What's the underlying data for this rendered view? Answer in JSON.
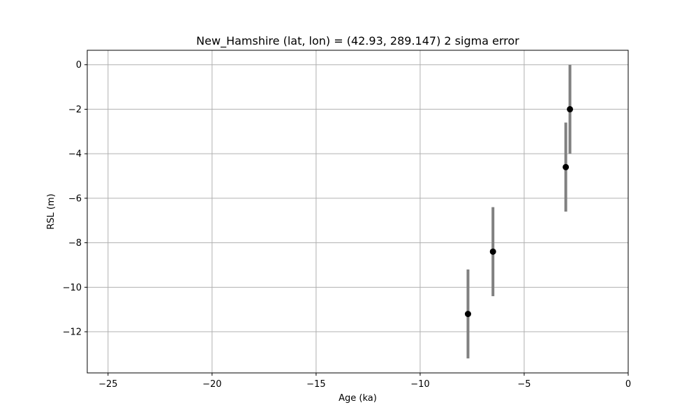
{
  "chart_data": {
    "type": "scatter",
    "title": "New_Hamshire (lat, lon) = (42.93, 289.147)  2 sigma error",
    "xlabel": "Age (ka)",
    "ylabel": "RSL (m)",
    "xlim": [
      -26,
      0
    ],
    "ylim": [
      -13.85,
      0.65
    ],
    "x_ticks": [
      -25,
      -20,
      -15,
      -10,
      -5,
      0
    ],
    "y_ticks": [
      0,
      -2,
      -4,
      -6,
      -8,
      -10,
      -12
    ],
    "x_tick_labels": [
      "−25",
      "−20",
      "−15",
      "−10",
      "−5",
      "0"
    ],
    "y_tick_labels": [
      "0",
      "−2",
      "−4",
      "−6",
      "−8",
      "−10",
      "−12"
    ],
    "grid": true,
    "points": [
      {
        "x": -7.7,
        "y": -11.2,
        "err": 2.0
      },
      {
        "x": -6.5,
        "y": -8.4,
        "err": 2.0
      },
      {
        "x": -3.0,
        "y": -4.6,
        "err": 2.0
      },
      {
        "x": -2.8,
        "y": -2.0,
        "err": 2.0
      }
    ],
    "marker_color": "#000000",
    "errorbar_color": "#808080",
    "grid_color": "#b0b0b0"
  }
}
